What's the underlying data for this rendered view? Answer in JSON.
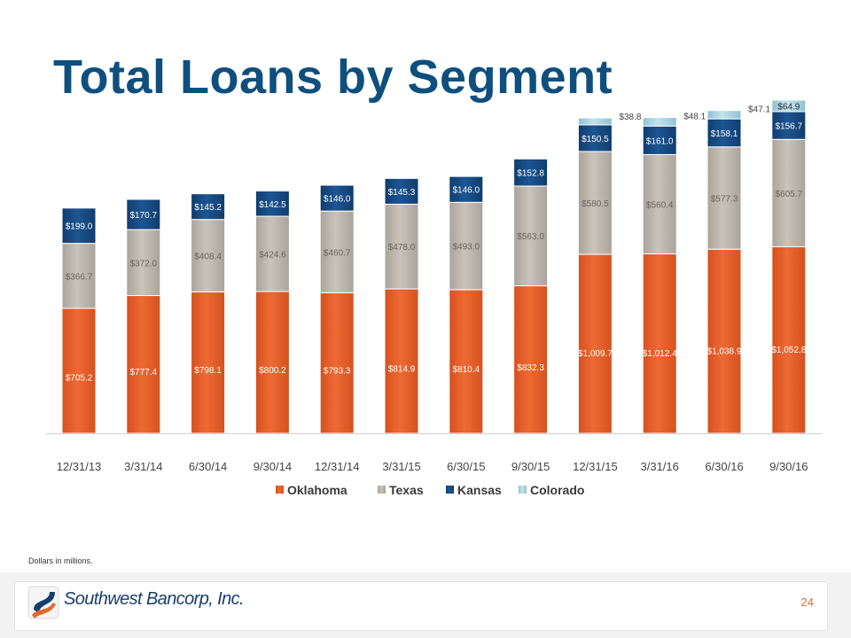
{
  "slide": {
    "title": "Total Loans by Segment",
    "note": "Dollars in millions.",
    "brand": "Southwest Bancorp, Inc.",
    "page_number": "24"
  },
  "colors": {
    "title": "#0e4f7e",
    "oklahoma": "#e8602c",
    "texas": "#bdb6ae",
    "kansas": "#174a82",
    "colorado": "#a9d3e0",
    "page_number": "#e3692a"
  },
  "chart_data": {
    "type": "bar",
    "stacked": true,
    "categories": [
      "12/31/13",
      "3/31/14",
      "6/30/14",
      "9/30/14",
      "12/31/14",
      "3/31/15",
      "6/30/15",
      "9/30/15",
      "12/31/15",
      "3/31/16",
      "6/30/16",
      "9/30/16"
    ],
    "series": [
      {
        "name": "Oklahoma",
        "values": [
          705.2,
          777.4,
          798.1,
          800.2,
          793.3,
          814.9,
          810.4,
          832.3,
          1009.7,
          1012.4,
          1038.9,
          1052.8
        ],
        "labels": [
          "$705.2",
          "$777.4",
          "$798.1",
          "$800.2",
          "$793.3",
          "$814.9",
          "$810.4",
          "$832.3",
          "$1,009.7",
          "$1,012.4",
          "$1,038.9",
          "$1,052.8"
        ]
      },
      {
        "name": "Texas",
        "values": [
          366.7,
          372.0,
          408.4,
          424.6,
          460.7,
          478.0,
          493.0,
          563.0,
          580.5,
          560.4,
          577.3,
          605.7
        ],
        "labels": [
          "$366.7",
          "$372.0",
          "$408.4",
          "$424.6",
          "$460.7",
          "$478.0",
          "$493.0",
          "$563.0",
          "$580.5",
          "$560.4",
          "$577.3",
          "$605.7"
        ]
      },
      {
        "name": "Kansas",
        "values": [
          199.0,
          170.7,
          145.2,
          142.5,
          146.0,
          145.3,
          146.0,
          152.8,
          150.5,
          161.0,
          158.1,
          156.7
        ],
        "labels": [
          "$199.0",
          "$170.7",
          "$145.2",
          "$142.5",
          "$146.0",
          "$145.3",
          "$146.0",
          "$152.8",
          "$150.5",
          "$161.0",
          "$158.1",
          "$156.7"
        ]
      },
      {
        "name": "Colorado",
        "values": [
          null,
          null,
          null,
          null,
          null,
          null,
          null,
          null,
          38.8,
          48.1,
          47.1,
          64.9
        ],
        "labels": [
          null,
          null,
          null,
          null,
          null,
          null,
          null,
          null,
          "$38.8",
          "$48.1",
          "$47.1",
          "$64.9"
        ]
      }
    ],
    "legend": "bottom",
    "grid": false,
    "y_axis_visible": false
  }
}
